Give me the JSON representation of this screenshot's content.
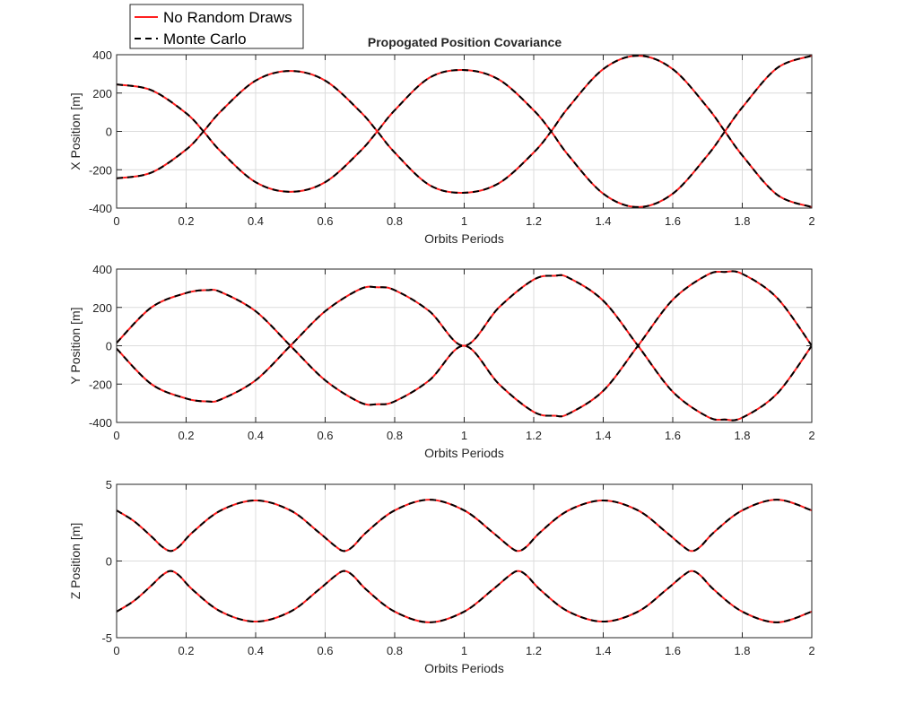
{
  "figure": {
    "title": "Propogated Position Covariance"
  },
  "legend": {
    "placement": "top-left",
    "entries": [
      {
        "label": "No Random Draws",
        "color": "#ff1f1f",
        "style": "solid"
      },
      {
        "label": "Monte Carlo",
        "color": "#000000",
        "style": "dashed"
      }
    ]
  },
  "chart_data": [
    {
      "type": "line",
      "id": "x",
      "title": "Propogated Position Covariance",
      "xlabel": "Orbits Periods",
      "ylabel": "X Position [m]",
      "xlim": [
        0,
        2
      ],
      "ylim": [
        -400,
        400
      ],
      "xticks": [
        0,
        0.2,
        0.4,
        0.6,
        0.8,
        1,
        1.2,
        1.4,
        1.6,
        1.8,
        2
      ],
      "xtick_labels": [
        "0",
        "0.2",
        "0.4",
        "0.6",
        "0.8",
        "1",
        "1.2",
        "1.4",
        "1.6",
        "1.8",
        "2"
      ],
      "yticks": [
        -400,
        -200,
        0,
        200,
        400
      ],
      "ytick_labels": [
        "-400",
        "-200",
        "0",
        "200",
        "400"
      ],
      "grid": true,
      "series": [
        {
          "name": "No Random Draws",
          "color": "#ff1f1f",
          "style": "solid",
          "x": [
            0,
            0.1,
            0.2,
            0.25,
            0.3,
            0.4,
            0.5,
            0.6,
            0.7,
            0.75,
            0.8,
            0.9,
            1.0,
            1.1,
            1.2,
            1.25,
            1.3,
            1.4,
            1.5,
            1.6,
            1.7,
            1.75,
            1.8,
            1.9,
            2.0
          ],
          "y": [
            245,
            215,
            95,
            0,
            -105,
            -265,
            -315,
            -265,
            -105,
            0,
            110,
            280,
            320,
            270,
            110,
            0,
            -125,
            -325,
            -395,
            -325,
            -125,
            0,
            125,
            330,
            395
          ]
        },
        {
          "name": "No Random Draws",
          "color": "#ff1f1f",
          "style": "solid",
          "x": [
            0,
            0.1,
            0.2,
            0.25,
            0.3,
            0.4,
            0.5,
            0.6,
            0.7,
            0.75,
            0.8,
            0.9,
            1.0,
            1.1,
            1.2,
            1.25,
            1.3,
            1.4,
            1.5,
            1.6,
            1.7,
            1.75,
            1.8,
            1.9,
            2.0
          ],
          "y": [
            -245,
            -215,
            -95,
            0,
            105,
            265,
            315,
            265,
            105,
            0,
            -110,
            -280,
            -320,
            -270,
            -110,
            0,
            125,
            325,
            395,
            325,
            125,
            0,
            -125,
            -330,
            -395
          ]
        },
        {
          "name": "Monte Carlo",
          "color": "#000000",
          "style": "dashed",
          "x": [
            0,
            0.1,
            0.2,
            0.25,
            0.3,
            0.4,
            0.5,
            0.6,
            0.7,
            0.75,
            0.8,
            0.9,
            1.0,
            1.1,
            1.2,
            1.25,
            1.3,
            1.4,
            1.5,
            1.6,
            1.7,
            1.75,
            1.8,
            1.9,
            2.0
          ],
          "y": [
            245,
            215,
            95,
            0,
            -105,
            -265,
            -315,
            -265,
            -105,
            0,
            110,
            280,
            320,
            270,
            110,
            0,
            -125,
            -325,
            -395,
            -325,
            -125,
            0,
            125,
            330,
            395
          ]
        },
        {
          "name": "Monte Carlo",
          "color": "#000000",
          "style": "dashed",
          "x": [
            0,
            0.1,
            0.2,
            0.25,
            0.3,
            0.4,
            0.5,
            0.6,
            0.7,
            0.75,
            0.8,
            0.9,
            1.0,
            1.1,
            1.2,
            1.25,
            1.3,
            1.4,
            1.5,
            1.6,
            1.7,
            1.75,
            1.8,
            1.9,
            2.0
          ],
          "y": [
            -245,
            -215,
            -95,
            0,
            105,
            265,
            315,
            265,
            105,
            0,
            -110,
            -280,
            -320,
            -270,
            -110,
            0,
            125,
            325,
            395,
            325,
            125,
            0,
            -125,
            -330,
            -395
          ]
        }
      ]
    },
    {
      "type": "line",
      "id": "y",
      "title": "",
      "xlabel": "Orbits Periods",
      "ylabel": "Y Position [m]",
      "xlim": [
        0,
        2
      ],
      "ylim": [
        -400,
        400
      ],
      "xticks": [
        0,
        0.2,
        0.4,
        0.6,
        0.8,
        1,
        1.2,
        1.4,
        1.6,
        1.8,
        2
      ],
      "xtick_labels": [
        "0",
        "0.2",
        "0.4",
        "0.6",
        "0.8",
        "1",
        "1.2",
        "1.4",
        "1.6",
        "1.8",
        "2"
      ],
      "yticks": [
        -400,
        -200,
        0,
        200,
        400
      ],
      "ytick_labels": [
        "-400",
        "-200",
        "0",
        "200",
        "400"
      ],
      "grid": true,
      "series": [
        {
          "name": "No Random Draws",
          "color": "#ff1f1f",
          "style": "solid",
          "x": [
            0,
            0.1,
            0.2,
            0.26,
            0.3,
            0.4,
            0.5,
            0.6,
            0.7,
            0.75,
            0.8,
            0.9,
            1.0,
            1.1,
            1.2,
            1.26,
            1.3,
            1.4,
            1.5,
            1.6,
            1.7,
            1.75,
            1.8,
            1.9,
            2.0
          ],
          "y": [
            15,
            200,
            275,
            290,
            280,
            180,
            0,
            -180,
            -295,
            -305,
            -290,
            -180,
            0,
            -200,
            -345,
            -365,
            -355,
            -235,
            0,
            240,
            370,
            385,
            375,
            250,
            0
          ]
        },
        {
          "name": "No Random Draws",
          "color": "#ff1f1f",
          "style": "solid",
          "x": [
            0,
            0.1,
            0.2,
            0.26,
            0.3,
            0.4,
            0.5,
            0.6,
            0.7,
            0.75,
            0.8,
            0.9,
            1.0,
            1.1,
            1.2,
            1.26,
            1.3,
            1.4,
            1.5,
            1.6,
            1.7,
            1.75,
            1.8,
            1.9,
            2.0
          ],
          "y": [
            -15,
            -200,
            -275,
            -290,
            -280,
            -180,
            0,
            180,
            295,
            305,
            290,
            180,
            0,
            200,
            345,
            365,
            355,
            235,
            0,
            -240,
            -370,
            -385,
            -375,
            -250,
            0
          ]
        },
        {
          "name": "Monte Carlo",
          "color": "#000000",
          "style": "dashed",
          "x": [
            0,
            0.1,
            0.2,
            0.26,
            0.3,
            0.4,
            0.5,
            0.6,
            0.7,
            0.75,
            0.8,
            0.9,
            1.0,
            1.1,
            1.2,
            1.26,
            1.3,
            1.4,
            1.5,
            1.6,
            1.7,
            1.75,
            1.8,
            1.9,
            2.0
          ],
          "y": [
            15,
            200,
            275,
            290,
            280,
            180,
            0,
            -180,
            -295,
            -305,
            -290,
            -180,
            0,
            -200,
            -345,
            -365,
            -355,
            -235,
            0,
            240,
            370,
            385,
            375,
            250,
            0
          ]
        },
        {
          "name": "Monte Carlo",
          "color": "#000000",
          "style": "dashed",
          "x": [
            0,
            0.1,
            0.2,
            0.26,
            0.3,
            0.4,
            0.5,
            0.6,
            0.7,
            0.75,
            0.8,
            0.9,
            1.0,
            1.1,
            1.2,
            1.26,
            1.3,
            1.4,
            1.5,
            1.6,
            1.7,
            1.75,
            1.8,
            1.9,
            2.0
          ],
          "y": [
            -15,
            -200,
            -275,
            -290,
            -280,
            -180,
            0,
            180,
            295,
            305,
            290,
            180,
            0,
            200,
            345,
            365,
            355,
            235,
            0,
            -240,
            -370,
            -385,
            -375,
            -250,
            0
          ]
        }
      ]
    },
    {
      "type": "line",
      "id": "z",
      "title": "",
      "xlabel": "Orbits Periods",
      "ylabel": "Z Position [m]",
      "xlim": [
        0,
        2
      ],
      "ylim": [
        -5,
        5
      ],
      "xticks": [
        0,
        0.2,
        0.4,
        0.6,
        0.8,
        1,
        1.2,
        1.4,
        1.6,
        1.8,
        2
      ],
      "xtick_labels": [
        "0",
        "0.2",
        "0.4",
        "0.6",
        "0.8",
        "1",
        "1.2",
        "1.4",
        "1.6",
        "1.8",
        "2"
      ],
      "yticks": [
        -5,
        0,
        5
      ],
      "ytick_labels": [
        "-5",
        "0",
        "5"
      ],
      "grid": true,
      "series": [
        {
          "name": "No Random Draws",
          "color": "#ff1f1f",
          "style": "solid",
          "x": [
            0,
            0.05,
            0.1,
            0.13,
            0.155,
            0.18,
            0.22,
            0.3,
            0.4,
            0.5,
            0.58,
            0.63,
            0.655,
            0.68,
            0.72,
            0.8,
            0.9,
            1.0,
            1.08,
            1.13,
            1.155,
            1.18,
            1.22,
            1.3,
            1.4,
            1.5,
            1.58,
            1.63,
            1.655,
            1.68,
            1.72,
            1.8,
            1.9,
            2.0
          ],
          "y": [
            3.3,
            2.6,
            1.6,
            0.95,
            0.65,
            0.95,
            1.9,
            3.3,
            3.95,
            3.3,
            1.9,
            0.95,
            0.65,
            0.95,
            1.9,
            3.3,
            4.0,
            3.3,
            1.9,
            0.95,
            0.65,
            0.95,
            1.9,
            3.3,
            3.95,
            3.3,
            1.9,
            0.95,
            0.65,
            0.95,
            1.9,
            3.3,
            4.0,
            3.3
          ]
        },
        {
          "name": "No Random Draws",
          "color": "#ff1f1f",
          "style": "solid",
          "x": [
            0,
            0.05,
            0.1,
            0.13,
            0.155,
            0.18,
            0.22,
            0.3,
            0.4,
            0.5,
            0.58,
            0.63,
            0.655,
            0.68,
            0.72,
            0.8,
            0.9,
            1.0,
            1.08,
            1.13,
            1.155,
            1.18,
            1.22,
            1.3,
            1.4,
            1.5,
            1.58,
            1.63,
            1.655,
            1.68,
            1.72,
            1.8,
            1.9,
            2.0
          ],
          "y": [
            -3.3,
            -2.6,
            -1.6,
            -0.95,
            -0.65,
            -0.95,
            -1.9,
            -3.3,
            -3.95,
            -3.3,
            -1.9,
            -0.95,
            -0.65,
            -0.95,
            -1.9,
            -3.3,
            -4.0,
            -3.3,
            -1.9,
            -0.95,
            -0.65,
            -0.95,
            -1.9,
            -3.3,
            -3.95,
            -3.3,
            -1.9,
            -0.95,
            -0.65,
            -0.95,
            -1.9,
            -3.3,
            -4.0,
            -3.3
          ]
        },
        {
          "name": "Monte Carlo",
          "color": "#000000",
          "style": "dashed",
          "x": [
            0,
            0.05,
            0.1,
            0.13,
            0.155,
            0.18,
            0.22,
            0.3,
            0.4,
            0.5,
            0.58,
            0.63,
            0.655,
            0.68,
            0.72,
            0.8,
            0.9,
            1.0,
            1.08,
            1.13,
            1.155,
            1.18,
            1.22,
            1.3,
            1.4,
            1.5,
            1.58,
            1.63,
            1.655,
            1.68,
            1.72,
            1.8,
            1.9,
            2.0
          ],
          "y": [
            3.3,
            2.6,
            1.6,
            0.95,
            0.65,
            0.95,
            1.9,
            3.3,
            3.95,
            3.3,
            1.9,
            0.95,
            0.65,
            0.95,
            1.9,
            3.3,
            4.0,
            3.3,
            1.9,
            0.95,
            0.65,
            0.95,
            1.9,
            3.3,
            3.95,
            3.3,
            1.9,
            0.95,
            0.65,
            0.95,
            1.9,
            3.3,
            4.0,
            3.3
          ]
        },
        {
          "name": "Monte Carlo",
          "color": "#000000",
          "style": "dashed",
          "x": [
            0,
            0.05,
            0.1,
            0.13,
            0.155,
            0.18,
            0.22,
            0.3,
            0.4,
            0.5,
            0.58,
            0.63,
            0.655,
            0.68,
            0.72,
            0.8,
            0.9,
            1.0,
            1.08,
            1.13,
            1.155,
            1.18,
            1.22,
            1.3,
            1.4,
            1.5,
            1.58,
            1.63,
            1.655,
            1.68,
            1.72,
            1.8,
            1.9,
            2.0
          ],
          "y": [
            -3.3,
            -2.6,
            -1.6,
            -0.95,
            -0.65,
            -0.95,
            -1.9,
            -3.3,
            -3.95,
            -3.3,
            -1.9,
            -0.95,
            -0.65,
            -0.95,
            -1.9,
            -3.3,
            -4.0,
            -3.3,
            -1.9,
            -0.95,
            -0.65,
            -0.95,
            -1.9,
            -3.3,
            -3.95,
            -3.3,
            -1.9,
            -0.95,
            -0.65,
            -0.95,
            -1.9,
            -3.3,
            -4.0,
            -3.3
          ]
        }
      ]
    }
  ]
}
